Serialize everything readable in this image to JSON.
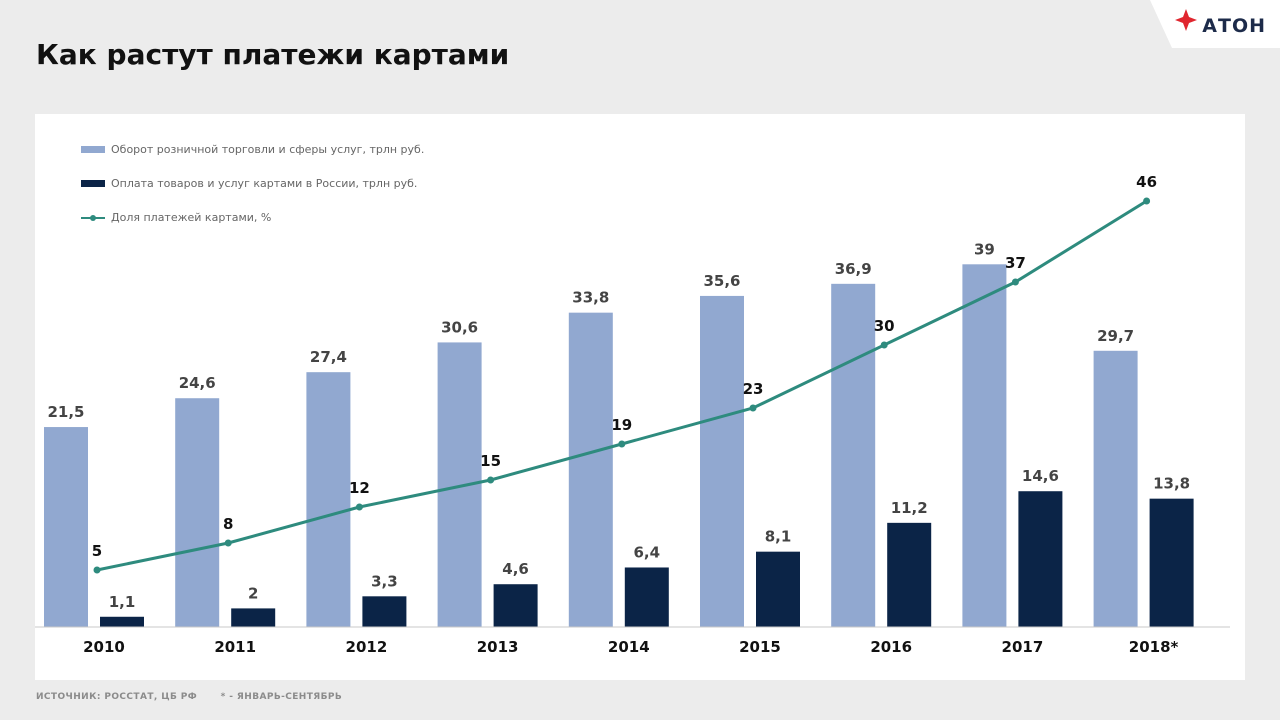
{
  "title": "Как растут платежи картами",
  "brand": {
    "name": "АТОН",
    "accent": "#e0262f"
  },
  "footer": {
    "source": "ИСТОЧНИК: РОССТАТ, ЦБ РФ",
    "note": "* - ЯНВАРЬ-СЕНТЯБРЬ"
  },
  "chart_data": {
    "type": "bar",
    "categories": [
      "2010",
      "2011",
      "2012",
      "2013",
      "2014",
      "2015",
      "2016",
      "2017",
      "2018*"
    ],
    "series": [
      {
        "name": "Оборот розничной торговли и сферы услуг, трлн руб.",
        "type": "bar",
        "color": "#91a8d0",
        "values": [
          21.5,
          24.6,
          27.4,
          30.6,
          33.8,
          35.6,
          36.9,
          39,
          29.7
        ],
        "labels": [
          "21,5",
          "24,6",
          "27,4",
          "30,6",
          "33,8",
          "35,6",
          "36,9",
          "39",
          "29,7"
        ]
      },
      {
        "name": "Оплата товаров и услуг картами в России, трлн руб.",
        "type": "bar",
        "color": "#0b2447",
        "values": [
          1.1,
          2,
          3.3,
          4.6,
          6.4,
          8.1,
          11.2,
          14.6,
          13.8
        ],
        "labels": [
          "1,1",
          "2",
          "3,3",
          "4,6",
          "6,4",
          "8,1",
          "11,2",
          "14,6",
          "13,8"
        ]
      },
      {
        "name": "Доля платежей картами, %",
        "type": "line",
        "color": "#2e8b7e",
        "values": [
          5,
          8,
          12,
          15,
          19,
          23,
          30,
          37,
          46
        ],
        "labels": [
          "5",
          "8",
          "12",
          "15",
          "19",
          "23",
          "30",
          "37",
          "46"
        ]
      }
    ],
    "legend": "top-left",
    "grid": false
  }
}
